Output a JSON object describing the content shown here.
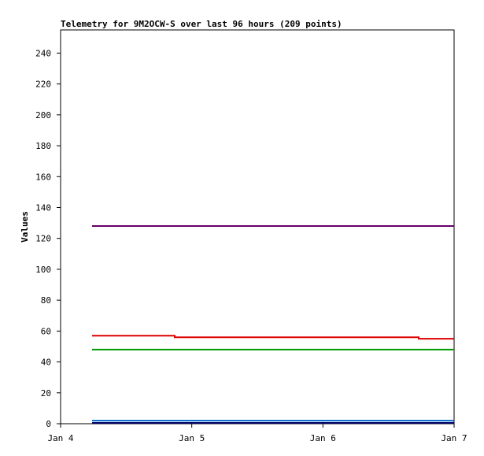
{
  "chart_data": {
    "type": "line",
    "title": "Telemetry for 9M2OCW-S over last 96 hours (209 points)",
    "y_label": "Values",
    "xlim": [
      0,
      3
    ],
    "xticks": [
      {
        "value": 0,
        "label": "Jan 4"
      },
      {
        "value": 1,
        "label": "Jan 5"
      },
      {
        "value": 2,
        "label": "Jan 6"
      },
      {
        "value": 3,
        "label": "Jan 7"
      }
    ],
    "ylim": [
      0,
      255
    ],
    "yticks": [
      0,
      20,
      40,
      60,
      80,
      100,
      120,
      140,
      160,
      180,
      200,
      220,
      240
    ],
    "grid": false,
    "step": true,
    "series": [
      {
        "color": "#660066",
        "x": [
          0.24,
          3
        ],
        "values": [
          128,
          128
        ]
      },
      {
        "color": "#dd0000",
        "x": [
          0.24,
          0.87,
          2.73,
          3
        ],
        "values": [
          57,
          56,
          55,
          55
        ]
      },
      {
        "color": "#009900",
        "x": [
          0.24,
          3
        ],
        "values": [
          48,
          48
        ]
      },
      {
        "color": "#0066cc",
        "x": [
          0.24,
          3
        ],
        "values": [
          2,
          2
        ]
      },
      {
        "color": "#000066",
        "x": [
          0.24,
          3
        ],
        "values": [
          0.5,
          0.5
        ]
      }
    ]
  }
}
